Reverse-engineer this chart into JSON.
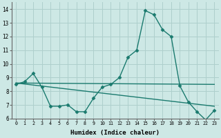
{
  "xlabel": "Humidex (Indice chaleur)",
  "background_color": "#cde8e5",
  "grid_color": "#aecfcc",
  "line_color": "#1a7a6e",
  "xlim": [
    -0.5,
    23.5
  ],
  "ylim": [
    6,
    14.5
  ],
  "xticks": [
    0,
    1,
    2,
    3,
    4,
    5,
    6,
    7,
    8,
    9,
    10,
    11,
    12,
    13,
    14,
    15,
    16,
    17,
    18,
    19,
    20,
    21,
    22,
    23
  ],
  "yticks": [
    6,
    7,
    8,
    9,
    10,
    11,
    12,
    13,
    14
  ],
  "line1_x": [
    0,
    1,
    2,
    3,
    4,
    5,
    6,
    7,
    8,
    9,
    10,
    11,
    12,
    13,
    14,
    15,
    16,
    17,
    18,
    19,
    20,
    21,
    22,
    23
  ],
  "line1_y": [
    8.5,
    8.7,
    9.3,
    8.3,
    6.9,
    6.9,
    7.0,
    6.5,
    6.5,
    7.5,
    8.3,
    8.5,
    9.0,
    10.5,
    11.0,
    13.9,
    13.6,
    12.5,
    12.0,
    8.4,
    7.2,
    6.5,
    5.9,
    6.6
  ],
  "line2_x": [
    0,
    23
  ],
  "line2_y": [
    8.6,
    8.5
  ],
  "line3_x": [
    0,
    23
  ],
  "line3_y": [
    8.6,
    6.9
  ],
  "marker": "D",
  "markersize": 2.5,
  "linewidth": 1.0
}
